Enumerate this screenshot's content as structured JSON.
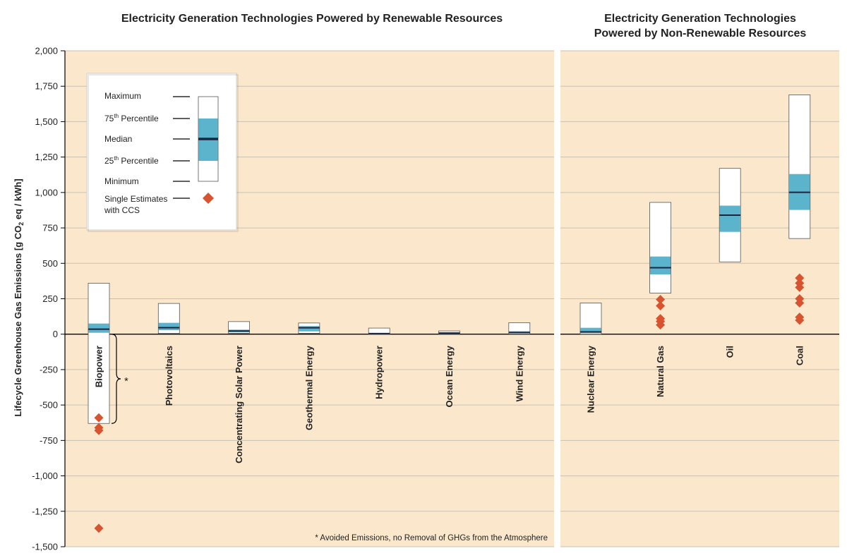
{
  "chart_data": {
    "type": "boxplot",
    "ylabel": "Lifecycle Greenhouse Gas Emissions [g CO₂ eq / kWh]",
    "ylim": [
      -1500,
      2000
    ],
    "yticks": [
      -1500,
      -1250,
      -1000,
      -750,
      -500,
      -250,
      0,
      250,
      500,
      750,
      1000,
      1250,
      1500,
      1750,
      2000
    ],
    "ytick_labels": [
      "-1,500",
      "-1,250",
      "-1,000",
      "-750",
      "-500",
      "-250",
      "0",
      "250",
      "500",
      "750",
      "1,000",
      "1,250",
      "1,500",
      "1,750",
      "2,000"
    ],
    "grid": true,
    "colors": {
      "background": "#fbe8cc",
      "iqr": "#5bb3cc",
      "median": "#1a2540",
      "ccs": "#d8532f",
      "grid": "#c9c0b2",
      "box_border": "#555555"
    },
    "panels": [
      {
        "title": "Electricity Generation Technologies Powered by Renewable Resources",
        "categories": [
          {
            "name": "Biopower",
            "min": -630,
            "q1": 10,
            "median": 35,
            "q3": 75,
            "max": 360,
            "ccs": [
              -590,
              -660,
              -680,
              -1370
            ]
          },
          {
            "name": "Photovoltaics",
            "min": 5,
            "q1": 28,
            "median": 46,
            "q3": 80,
            "max": 217,
            "ccs": []
          },
          {
            "name": "Concentrating Solar Power",
            "min": 7,
            "q1": 14,
            "median": 22,
            "q3": 32,
            "max": 89,
            "ccs": []
          },
          {
            "name": "Geothermal Energy",
            "min": 6,
            "q1": 20,
            "median": 45,
            "q3": 57,
            "max": 79,
            "ccs": []
          },
          {
            "name": "Hydropower",
            "min": 0,
            "q1": 3,
            "median": 4,
            "q3": 7,
            "max": 43,
            "ccs": []
          },
          {
            "name": "Ocean Energy",
            "min": 2,
            "q1": 6,
            "median": 8,
            "q3": 9,
            "max": 23,
            "ccs": []
          },
          {
            "name": "Wind Energy",
            "min": 2,
            "q1": 8,
            "median": 12,
            "q3": 20,
            "max": 81,
            "ccs": []
          }
        ]
      },
      {
        "title": "Electricity Generation Technologies Powered by Non-Renewable Resources",
        "title_lines": [
          "Electricity Generation Technologies",
          "Powered by Non-Renewable Resources"
        ],
        "categories": [
          {
            "name": "Nuclear Energy",
            "min": 1,
            "q1": 8,
            "median": 16,
            "q3": 45,
            "max": 220,
            "ccs": []
          },
          {
            "name": "Natural Gas",
            "min": 290,
            "q1": 422,
            "median": 469,
            "q3": 548,
            "max": 930,
            "ccs": [
              65,
              90,
              110,
              200,
              245
            ]
          },
          {
            "name": "Oil",
            "min": 510,
            "q1": 722,
            "median": 840,
            "q3": 907,
            "max": 1170,
            "ccs": []
          },
          {
            "name": "Coal",
            "min": 675,
            "q1": 877,
            "median": 1001,
            "q3": 1130,
            "max": 1689,
            "ccs": [
              98,
              120,
              220,
              250,
              330,
              360,
              396
            ]
          }
        ]
      }
    ],
    "bracket_marker": "*",
    "footnote": "* Avoided Emissions, no Removal of GHGs from the Atmosphere",
    "legend": {
      "placement": "top-left",
      "items": {
        "maximum": "Maximum",
        "p75_pre": "75",
        "p75_sup": "th",
        "p75_post": " Percentile",
        "median": "Median",
        "p25_pre": "25",
        "p25_sup": "th",
        "p25_post": " Percentile",
        "minimum": "Minimum",
        "single_line1": "Single Estimates",
        "single_line2": "with CCS"
      }
    }
  }
}
